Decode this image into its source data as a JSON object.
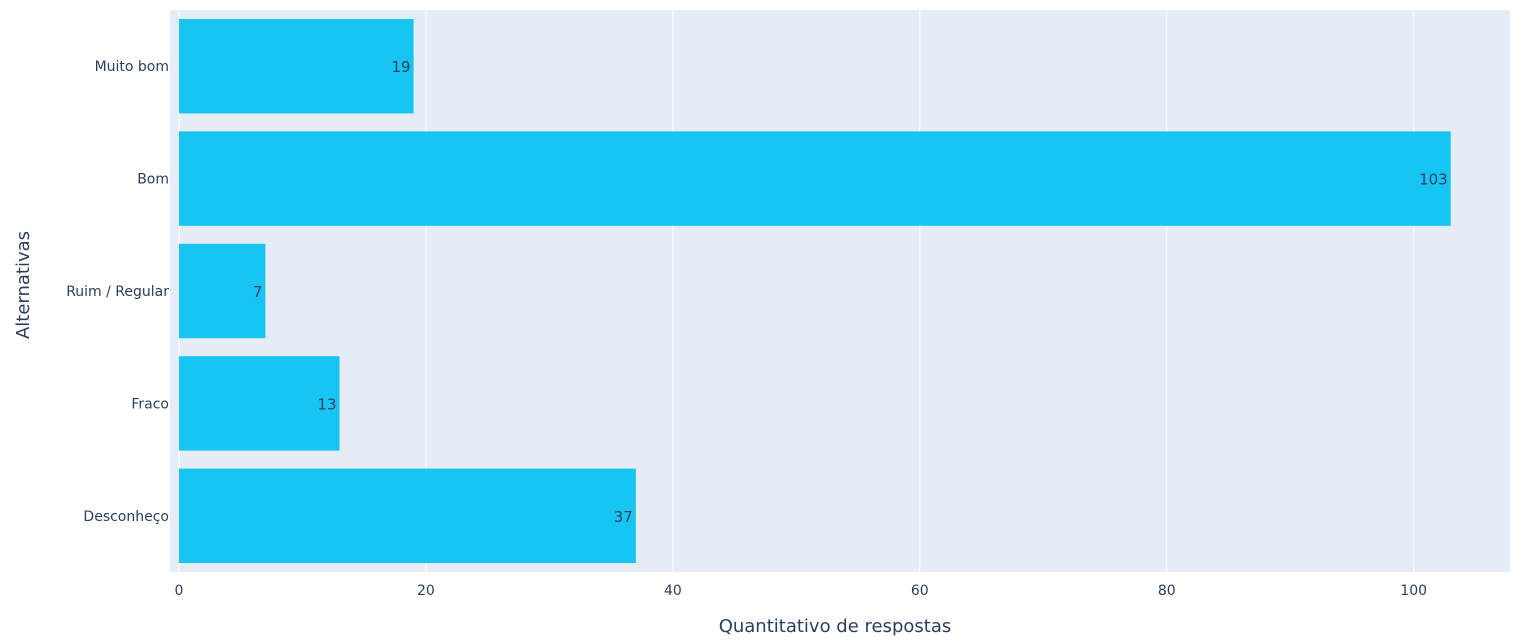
{
  "chart_data": {
    "type": "bar",
    "orientation": "horizontal",
    "categories": [
      "Muito bom",
      "Bom",
      "Ruim / Regular",
      "Fraco",
      "Desconheço"
    ],
    "values": [
      19,
      103,
      7,
      13,
      37
    ],
    "data_labels": [
      "19",
      "103",
      "7",
      "13",
      "37"
    ],
    "x_ticks": [
      0,
      20,
      40,
      60,
      80,
      100
    ],
    "x_tick_labels": [
      "0",
      "20",
      "40",
      "60",
      "80",
      "100"
    ],
    "xlabel": "Quantitativo de respostas",
    "ylabel": "Alternativas",
    "xlim": [
      0,
      107.8
    ],
    "grid": true,
    "legend": "none",
    "colors": {
      "bar": "#17c5f2",
      "plot_bg": "#e5ecf6",
      "grid": "#ffffff",
      "tick_text": "#2a3f5f",
      "label_text": "#2a3f5f",
      "data_label_text": "#2a3f5f"
    }
  }
}
